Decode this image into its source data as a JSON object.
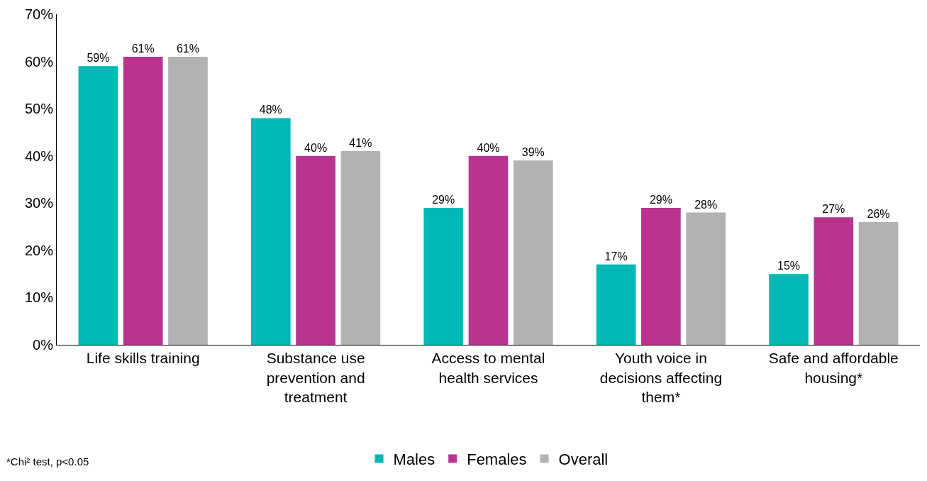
{
  "chart_data": {
    "type": "bar",
    "categories": [
      "Life skills training",
      "Substance use prevention and treatment",
      "Access to mental health services",
      "Youth voice in decisions affecting them*",
      "Safe and affordable housing*"
    ],
    "series": [
      {
        "name": "Males",
        "color": "#00b8b4",
        "values": [
          59,
          48,
          29,
          17,
          15
        ],
        "value_labels": [
          "59%",
          "48%",
          "29%",
          "17%",
          "15%"
        ]
      },
      {
        "name": "Females",
        "color": "#b8348f",
        "values": [
          61,
          40,
          40,
          29,
          27
        ],
        "value_labels": [
          "61%",
          "40%",
          "40%",
          "29%",
          "27%"
        ]
      },
      {
        "name": "Overall",
        "color": "#b2b2b4",
        "values": [
          61,
          41,
          39,
          28,
          26
        ],
        "value_labels": [
          "61%",
          "41%",
          "39%",
          "28%",
          "26%"
        ]
      }
    ],
    "ylim": [
      0,
      70
    ],
    "yticks": [
      {
        "value": 0,
        "label": "0%"
      },
      {
        "value": 10,
        "label": "10%"
      },
      {
        "value": 20,
        "label": "20%"
      },
      {
        "value": 30,
        "label": "30%"
      },
      {
        "value": 40,
        "label": "40%"
      },
      {
        "value": 50,
        "label": "50%"
      },
      {
        "value": 60,
        "label": "60%"
      },
      {
        "value": 70,
        "label": "70%"
      }
    ],
    "grid": false,
    "legend": "bottom",
    "annotations": [
      "*Chi² test, p<0.05"
    ]
  }
}
